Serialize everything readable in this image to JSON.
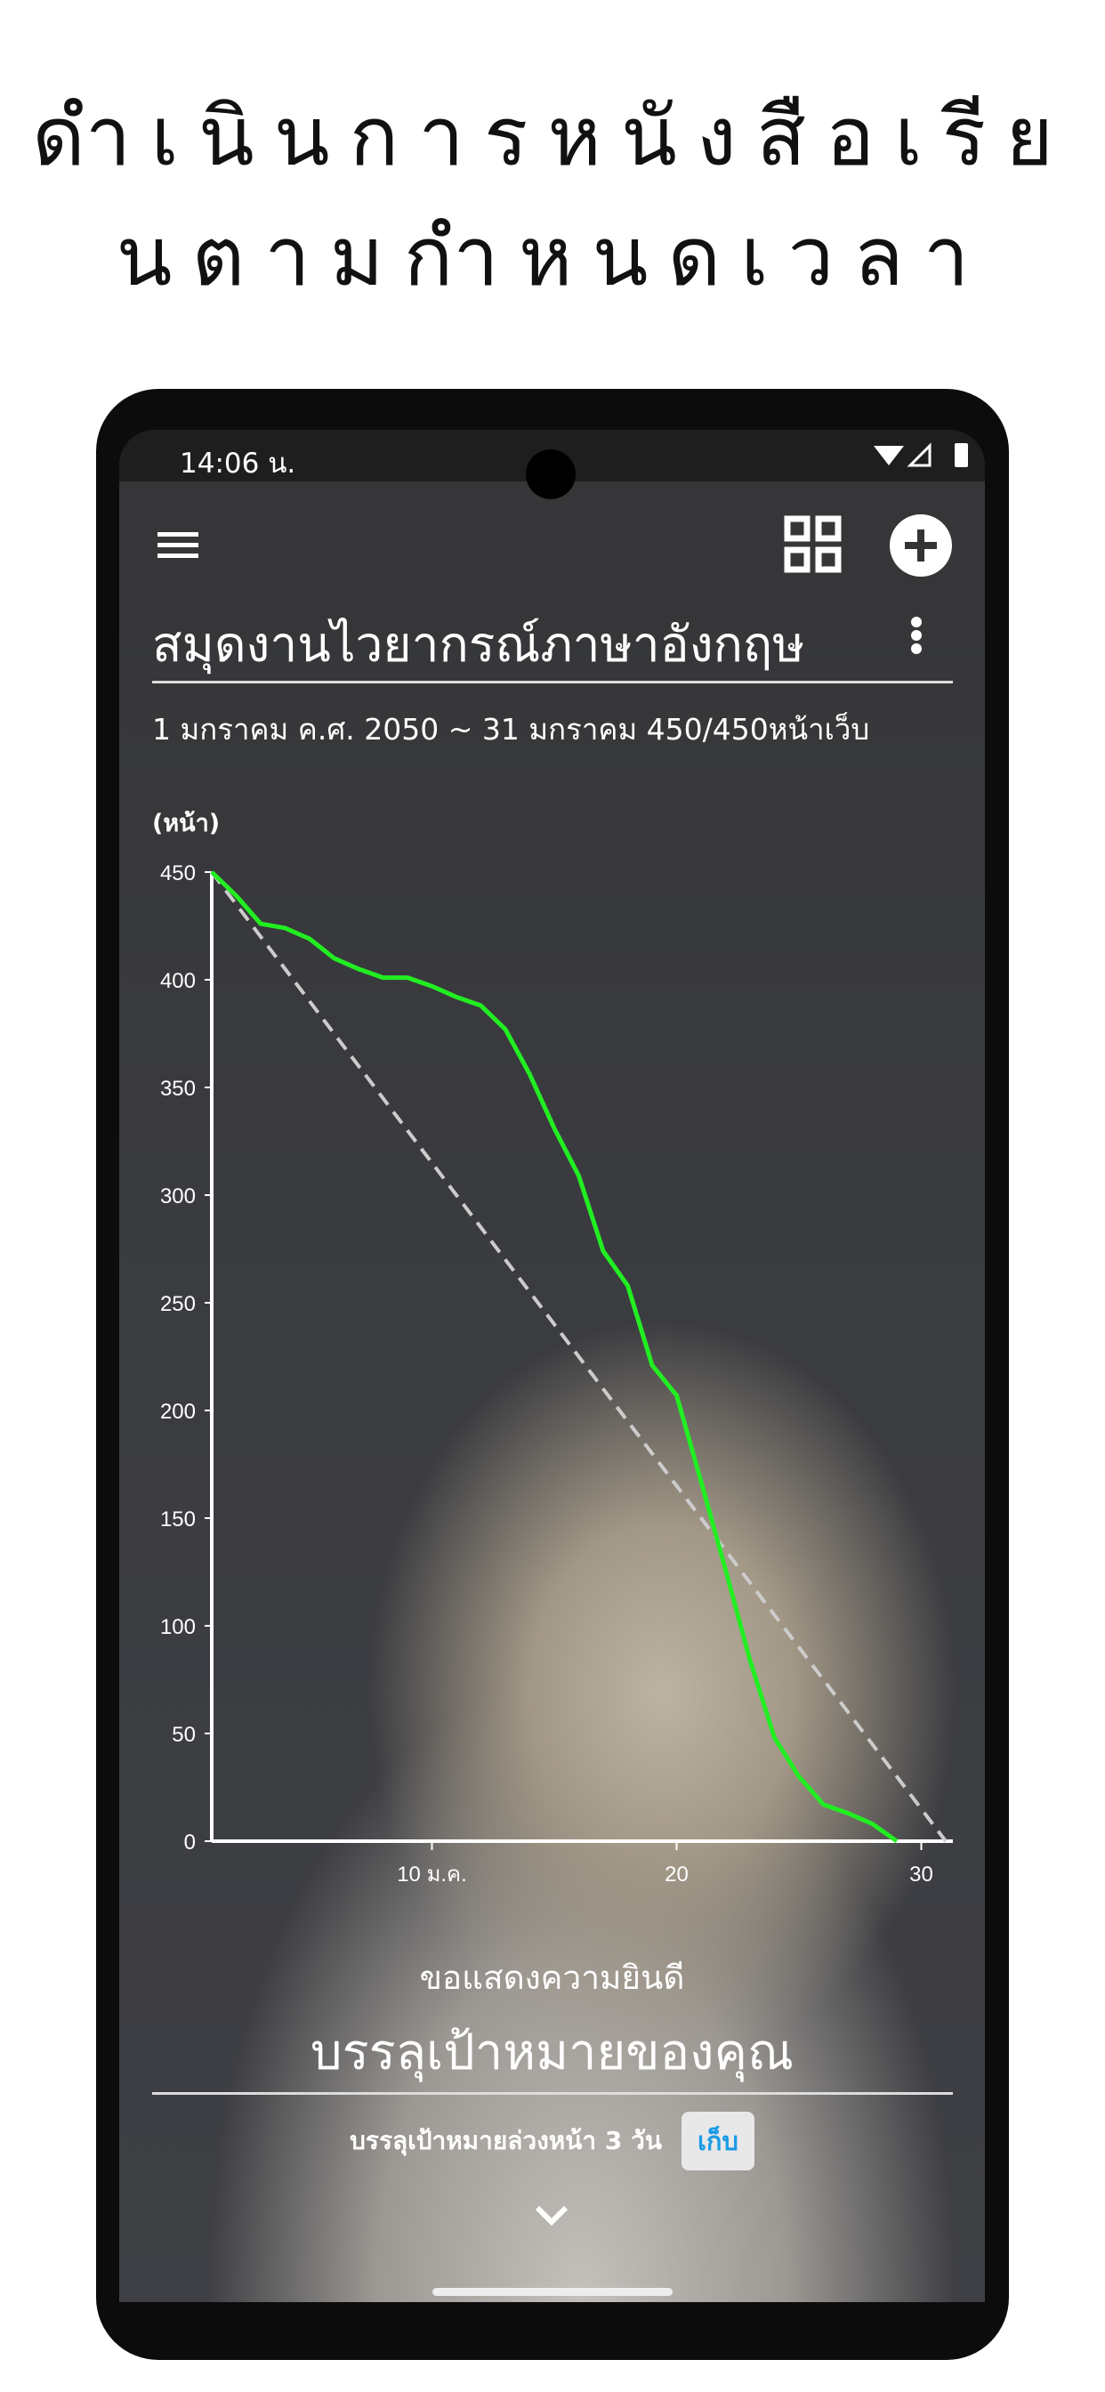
{
  "promo": {
    "line1": "ดำเนินการหนังสือเรีย",
    "line2": "นตามกำหนดเวลา"
  },
  "status_bar": {
    "time": "14:06 น.",
    "icons": [
      "wifi-icon",
      "signal-icon",
      "battery-icon"
    ]
  },
  "toolbar": {
    "menu_icon": "hamburger-icon",
    "grid_icon": "grid-icon",
    "add_icon": "plus-circle-icon",
    "more_icon": "kebab-icon"
  },
  "book": {
    "title": "สมุดงานไวยากรณ์ภาษาอังกฤษ",
    "period": "1 มกราคม ค.ศ. 2050 ~ 31 มกราคม  450/450หน้าเว็บ"
  },
  "chart_data": {
    "type": "line",
    "ylabel": "(หน้า)",
    "ylim": [
      0,
      450
    ],
    "yticks": [
      "0",
      "50",
      "100",
      "150",
      "200",
      "250",
      "300",
      "350",
      "400",
      "450"
    ],
    "xticks": [
      {
        "value": 10,
        "label": "10 ม.ค."
      },
      {
        "value": 20,
        "label": "20"
      },
      {
        "value": 30,
        "label": "30"
      }
    ],
    "xlim": [
      1,
      31
    ],
    "series": [
      {
        "role": "actual",
        "color": "#22ee22",
        "x": [
          1,
          2,
          3,
          4,
          5,
          6,
          7,
          8,
          9,
          10,
          11,
          12,
          13,
          14,
          15,
          16,
          17,
          18,
          19,
          20,
          21,
          22,
          23,
          24,
          25,
          26,
          27,
          28,
          29
        ],
        "y": [
          450,
          439,
          426,
          424,
          419,
          410,
          405,
          401,
          401,
          397,
          392,
          388,
          377,
          356,
          331,
          309,
          274,
          258,
          221,
          207,
          167,
          126,
          84,
          48,
          30,
          17,
          13,
          8,
          0
        ]
      },
      {
        "role": "plan",
        "color": "#cccccc",
        "style": "dashed",
        "x": [
          1,
          31
        ],
        "y": [
          450,
          0
        ]
      }
    ]
  },
  "result": {
    "congrats": "ขอแสดงความยินดี",
    "achieved": "บรรลุเป้าหมายของคุณ",
    "ahead": "บรรลุเป้าหมายล่วงหน้า 3 วัน",
    "keep_button": "เก็บ",
    "accent": "#1a9be6"
  }
}
